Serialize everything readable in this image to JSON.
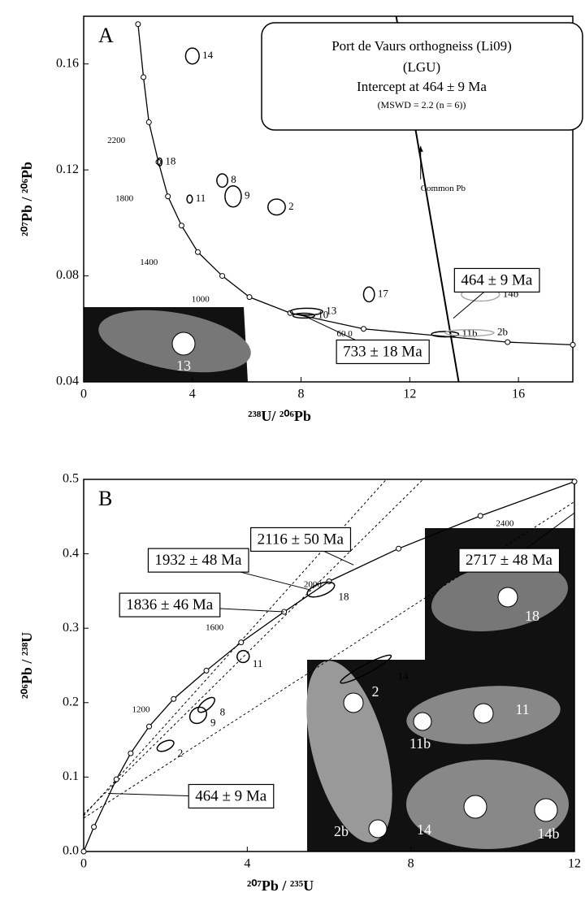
{
  "chart_data": [
    {
      "type": "concordia",
      "panel_label": "A",
      "x_label": "²³⁸U/ ²⁰⁶Pb",
      "y_label": "²⁰⁷Pb / ²⁰⁶Pb",
      "xlim": [
        0,
        18
      ],
      "xticks": [
        0,
        4,
        8,
        12,
        16
      ],
      "ylim": [
        0.04,
        0.178
      ],
      "yticks": [
        0.04,
        0.08,
        0.12,
        0.16
      ],
      "concordia": {
        "x": [
          2.0,
          2.2,
          2.4,
          2.75,
          3.1,
          3.6,
          4.2,
          5.1,
          6.1,
          7.6,
          10.3,
          15.6,
          18
        ],
        "y": [
          0.175,
          0.155,
          0.138,
          0.123,
          0.11,
          0.099,
          0.089,
          0.08,
          0.072,
          0.066,
          0.06,
          0.055,
          0.054
        ]
      },
      "age_labels": [
        {
          "text": "2200",
          "x": 1.2,
          "y": 0.131
        },
        {
          "text": "1800",
          "x": 1.5,
          "y": 0.109
        },
        {
          "text": "1400",
          "x": 2.4,
          "y": 0.085
        },
        {
          "text": "1000",
          "x": 4.3,
          "y": 0.071
        },
        {
          "text": "60 0",
          "x": 9.6,
          "y": 0.058
        }
      ],
      "ellipses": [
        {
          "label": "14",
          "x": 4.0,
          "y": 0.163,
          "sx": 0.25,
          "sy": 0.003,
          "color": "#000000"
        },
        {
          "label": "18",
          "x": 2.8,
          "y": 0.123,
          "sx": 0.08,
          "sy": 0.0015,
          "color": "#000000"
        },
        {
          "label": "8",
          "x": 5.1,
          "y": 0.116,
          "sx": 0.2,
          "sy": 0.0025,
          "color": "#000000"
        },
        {
          "label": "9",
          "x": 5.5,
          "y": 0.11,
          "sx": 0.3,
          "sy": 0.004,
          "color": "#000000"
        },
        {
          "label": "2",
          "x": 7.1,
          "y": 0.106,
          "sx": 0.32,
          "sy": 0.003,
          "color": "#000000"
        },
        {
          "label": "11",
          "x": 3.9,
          "y": 0.109,
          "sx": 0.1,
          "sy": 0.0015,
          "color": "#000000"
        },
        {
          "label": "17",
          "x": 10.5,
          "y": 0.073,
          "sx": 0.2,
          "sy": 0.0028,
          "color": "#000000"
        },
        {
          "label": "13",
          "x": 8.2,
          "y": 0.0665,
          "sx": 0.6,
          "sy": 0.0013,
          "color": "#000000"
        },
        {
          "label": "10",
          "x": 8.1,
          "y": 0.065,
          "sx": 0.4,
          "sy": 0.0009,
          "color": "#000000"
        },
        {
          "label": "14b",
          "x": 14.6,
          "y": 0.073,
          "sx": 0.7,
          "sy": 0.0025,
          "color": "#aaaaaa"
        },
        {
          "label": "11b",
          "x": 13.3,
          "y": 0.058,
          "sx": 0.5,
          "sy": 0.001,
          "color": "#000000"
        },
        {
          "label": "2b",
          "x": 14.2,
          "y": 0.0585,
          "sx": 0.9,
          "sy": 0.0012,
          "color": "#aaaaaa"
        }
      ],
      "lines": [
        {
          "x": [
            11.5,
            13.8
          ],
          "y": [
            0.178,
            0.04
          ],
          "dashed": false
        }
      ],
      "boxes": [
        {
          "text": "464 ± 9 Ma",
          "x": 15.2,
          "y": 0.078,
          "point_x": 13.6,
          "point_y": 0.064
        },
        {
          "text": "733 ± 18 Ma",
          "x": 11.0,
          "y": 0.051,
          "point_x": 8.3,
          "point_y": 0.064
        }
      ],
      "legend_box": [
        "Port de Vaurs orthogneiss (Li09)",
        "(LGU)",
        "Intercept at 464 ± 9 Ma",
        "(MSWD = 2.2 (n = 6))"
      ],
      "annotation": {
        "text": "Common Pb",
        "x": 12.4,
        "y": 0.114,
        "point_x": 12.4,
        "point_y": 0.129
      },
      "inset_labels": [
        "13"
      ]
    },
    {
      "type": "concordia",
      "panel_label": "B",
      "x_label": "²⁰⁷Pb / ²³⁵U",
      "y_label": "²⁰⁶Pb / ²³⁸U",
      "xlim": [
        0,
        12
      ],
      "xticks": [
        0,
        4,
        8,
        12
      ],
      "ylim": [
        0,
        0.5
      ],
      "yticks": [
        {
          "value": 0,
          "label": "0.0"
        },
        0.1,
        0.2,
        0.3,
        0.4,
        0.5
      ],
      "concordia": {
        "x": [
          0,
          0.25,
          0.8,
          1.15,
          1.6,
          2.2,
          3.0,
          3.85,
          4.9,
          6.0,
          7.7,
          9.7,
          12
        ],
        "y": [
          0,
          0.033,
          0.097,
          0.132,
          0.168,
          0.205,
          0.243,
          0.281,
          0.322,
          0.363,
          0.407,
          0.451,
          0.497
        ]
      },
      "age_labels": [
        {
          "text": "1200",
          "x": 1.4,
          "y": 0.19
        },
        {
          "text": "1600",
          "x": 3.2,
          "y": 0.3
        },
        {
          "text": "2000",
          "x": 5.6,
          "y": 0.358
        },
        {
          "text": "2400",
          "x": 10.3,
          "y": 0.44
        }
      ],
      "ellipses": [
        {
          "label": "2",
          "x": 2.0,
          "y": 0.142,
          "sx": 0.22,
          "sy": 0.006,
          "angle": -25,
          "color": "#000000"
        },
        {
          "label": "9",
          "x": 2.8,
          "y": 0.183,
          "sx": 0.22,
          "sy": 0.01,
          "angle": -40,
          "color": "#000000"
        },
        {
          "label": "8",
          "x": 3.0,
          "y": 0.197,
          "sx": 0.25,
          "sy": 0.006,
          "angle": -40,
          "color": "#000000"
        },
        {
          "label": "11",
          "x": 3.9,
          "y": 0.262,
          "sx": 0.15,
          "sy": 0.008,
          "angle": -35,
          "color": "#000000"
        },
        {
          "label": "18",
          "x": 5.8,
          "y": 0.352,
          "sx": 0.35,
          "sy": 0.008,
          "angle": -20,
          "color": "#000000"
        },
        {
          "label": "14",
          "x": 6.9,
          "y": 0.245,
          "sx": 0.7,
          "sy": 0.006,
          "angle": -28,
          "color": "#000000"
        }
      ],
      "lines": [
        {
          "x": [
            0,
            8.3
          ],
          "y": [
            0.05,
            0.5
          ],
          "dashed": true
        },
        {
          "x": [
            0,
            7.4
          ],
          "y": [
            0.048,
            0.5
          ],
          "dashed": true
        },
        {
          "x": [
            0,
            12
          ],
          "y": [
            0.045,
            0.47
          ],
          "dashed": true
        }
      ],
      "boxes": [
        {
          "text": "2116 ± 50 Ma",
          "x": 5.3,
          "y": 0.418,
          "point_x": 6.6,
          "point_y": 0.385
        },
        {
          "text": "1932 ± 48 Ma",
          "x": 2.8,
          "y": 0.39,
          "point_x": 5.5,
          "point_y": 0.352
        },
        {
          "text": "1836 ± 46 Ma",
          "x": 2.1,
          "y": 0.33,
          "point_x": 4.9,
          "point_y": 0.322
        },
        {
          "text": "2717 ± 48 Ma",
          "x": 10.4,
          "y": 0.39,
          "point_x": 12,
          "point_y": 0.455
        },
        {
          "text": "464 ± 9 Ma",
          "x": 3.6,
          "y": 0.073,
          "point_x": 0.6,
          "point_y": 0.078
        }
      ],
      "inset_labels": [
        "18",
        "2",
        "11",
        "11b",
        "2b",
        "14",
        "14b"
      ]
    }
  ]
}
